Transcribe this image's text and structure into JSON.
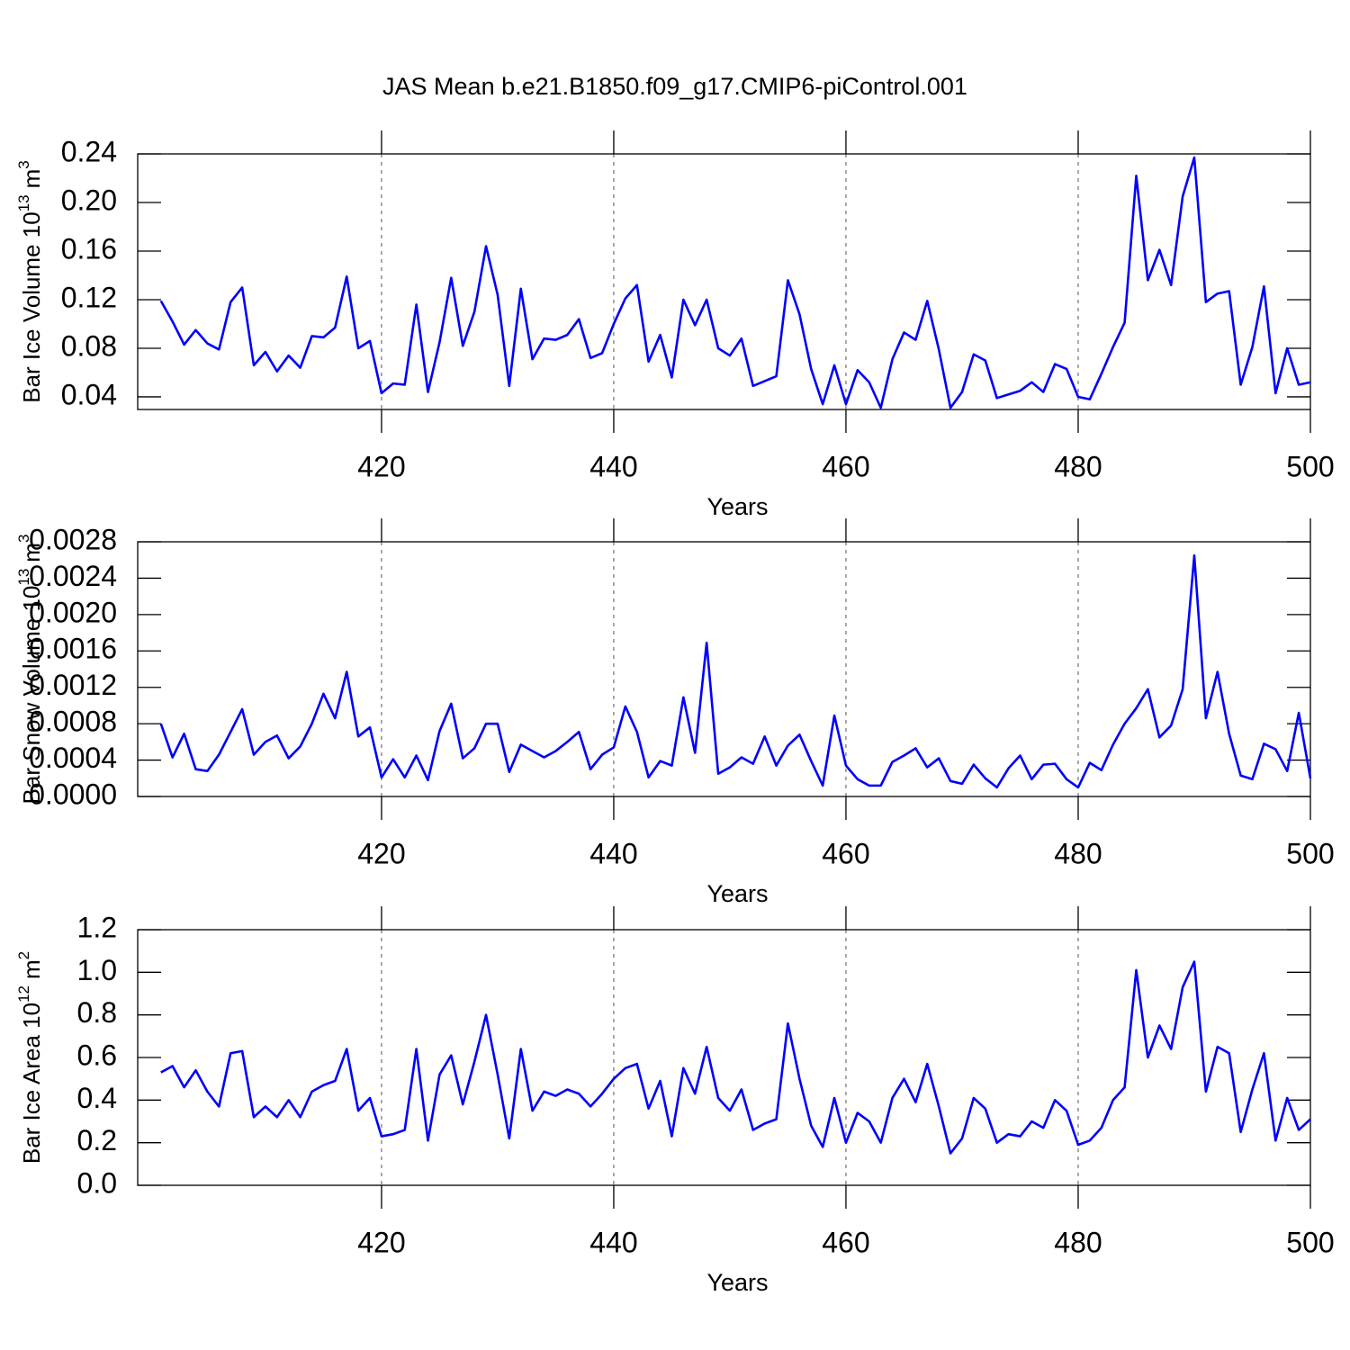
{
  "chart_data": [
    {
      "type": "line",
      "title": "JAS Mean b.e21.B1850.f09_g17.CMIP6-piControl.001",
      "ylabel": [
        "Bar Ice Volume 10",
        "13",
        "m",
        "3"
      ],
      "xlabel": "Years",
      "x": [
        401,
        402,
        403,
        404,
        405,
        406,
        407,
        408,
        409,
        410,
        411,
        412,
        413,
        414,
        415,
        416,
        417,
        418,
        419,
        420,
        421,
        422,
        423,
        424,
        425,
        426,
        427,
        428,
        429,
        430,
        431,
        432,
        433,
        434,
        435,
        436,
        437,
        438,
        439,
        440,
        441,
        442,
        443,
        444,
        445,
        446,
        447,
        448,
        449,
        450,
        451,
        452,
        453,
        454,
        455,
        456,
        457,
        458,
        459,
        460,
        461,
        462,
        463,
        464,
        465,
        466,
        467,
        468,
        469,
        470,
        471,
        472,
        473,
        474,
        475,
        476,
        477,
        478,
        479,
        480,
        481,
        482,
        483,
        484,
        485,
        486,
        487,
        488,
        489,
        490,
        491,
        492,
        493,
        494,
        495,
        496,
        497,
        498,
        499,
        500
      ],
      "series": [
        {
          "color": "#0000ff",
          "values": [
            0.119,
            0.102,
            0.083,
            0.095,
            0.084,
            0.079,
            0.118,
            0.13,
            0.066,
            0.077,
            0.061,
            0.074,
            0.064,
            0.09,
            0.089,
            0.097,
            0.139,
            0.08,
            0.086,
            0.043,
            0.051,
            0.05,
            0.116,
            0.044,
            0.085,
            0.138,
            0.082,
            0.11,
            0.164,
            0.124,
            0.049,
            0.129,
            0.071,
            0.088,
            0.087,
            0.091,
            0.104,
            0.072,
            0.076,
            0.1,
            0.121,
            0.132,
            0.069,
            0.091,
            0.056,
            0.12,
            0.099,
            0.12,
            0.08,
            0.074,
            0.088,
            0.049,
            0.053,
            0.057,
            0.136,
            0.108,
            0.063,
            0.034,
            0.066,
            0.034,
            0.062,
            0.052,
            0.031,
            0.071,
            0.093,
            0.087,
            0.119,
            0.079,
            0.031,
            0.044,
            0.075,
            0.07,
            0.039,
            0.042,
            0.045,
            0.052,
            0.044,
            0.067,
            0.063,
            0.04,
            0.038,
            0.059,
            0.081,
            0.101,
            0.222,
            0.136,
            0.161,
            0.132,
            0.205,
            0.237,
            0.118,
            0.125,
            0.127,
            0.05,
            0.081,
            0.131,
            0.043,
            0.08,
            0.05,
            0.052
          ]
        }
      ],
      "xlim": [
        399,
        500
      ],
      "xticks": [
        420,
        440,
        460,
        480,
        500
      ],
      "ylim": [
        0.0296,
        0.24
      ],
      "yticks": [
        0.04,
        0.08,
        0.12,
        0.16,
        {
          "value": 0.2,
          "label": "0.20"
        },
        0.24
      ],
      "xgrid": true
    },
    {
      "type": "line",
      "ylabel": [
        "Bar Snow Volume 10",
        "13",
        "m",
        "3"
      ],
      "xlabel": "Years",
      "x": [
        401,
        402,
        403,
        404,
        405,
        406,
        407,
        408,
        409,
        410,
        411,
        412,
        413,
        414,
        415,
        416,
        417,
        418,
        419,
        420,
        421,
        422,
        423,
        424,
        425,
        426,
        427,
        428,
        429,
        430,
        431,
        432,
        433,
        434,
        435,
        436,
        437,
        438,
        439,
        440,
        441,
        442,
        443,
        444,
        445,
        446,
        447,
        448,
        449,
        450,
        451,
        452,
        453,
        454,
        455,
        456,
        457,
        458,
        459,
        460,
        461,
        462,
        463,
        464,
        465,
        466,
        467,
        468,
        469,
        470,
        471,
        472,
        473,
        474,
        475,
        476,
        477,
        478,
        479,
        480,
        481,
        482,
        483,
        484,
        485,
        486,
        487,
        488,
        489,
        490,
        491,
        492,
        493,
        494,
        495,
        496,
        497,
        498,
        499,
        500
      ],
      "series": [
        {
          "color": "#0000ff",
          "values": [
            0.0008,
            0.00043,
            0.00069,
            0.0003,
            0.00028,
            0.00046,
            0.00071,
            0.00096,
            0.00046,
            0.0006,
            0.00067,
            0.00042,
            0.00055,
            0.0008,
            0.00113,
            0.00086,
            0.00137,
            0.00066,
            0.00076,
            0.00021,
            0.00041,
            0.00021,
            0.00045,
            0.00018,
            0.00072,
            0.00102,
            0.00042,
            0.00053,
            0.0008,
            0.0008,
            0.00027,
            0.00057,
            0.0005,
            0.00043,
            0.0005,
            0.0006,
            0.00071,
            0.0003,
            0.00046,
            0.00054,
            0.00099,
            0.00071,
            0.00021,
            0.00039,
            0.00034,
            0.00109,
            0.00048,
            0.00169,
            0.00025,
            0.00032,
            0.00043,
            0.00036,
            0.00066,
            0.00034,
            0.00056,
            0.00068,
            0.00039,
            0.00012,
            0.00089,
            0.00034,
            0.00019,
            0.00012,
            0.00012,
            0.00038,
            0.00045,
            0.00053,
            0.00032,
            0.00042,
            0.00017,
            0.00014,
            0.00035,
            0.0002,
            0.0001,
            0.00031,
            0.00045,
            0.00019,
            0.00035,
            0.00036,
            0.00019,
            0.0001,
            0.00037,
            0.00029,
            0.00057,
            0.0008,
            0.00097,
            0.00118,
            0.00065,
            0.00078,
            0.00118,
            0.00265,
            0.00086,
            0.00137,
            0.00069,
            0.00023,
            0.00019,
            0.00058,
            0.00052,
            0.00028,
            0.00092,
            0.0002
          ]
        }
      ],
      "xlim": [
        399,
        500
      ],
      "xticks": [
        420,
        440,
        460,
        480,
        500
      ],
      "ylim": [
        0,
        0.0028
      ],
      "yticks": [
        {
          "value": 0,
          "label": "0.0000"
        },
        {
          "value": 0.0004,
          "label": "0.0004"
        },
        {
          "value": 0.0008,
          "label": "0.0008"
        },
        {
          "value": 0.0012,
          "label": "0.0012"
        },
        {
          "value": 0.0016,
          "label": "0.0016"
        },
        {
          "value": 0.002,
          "label": "0.0020"
        },
        {
          "value": 0.0024,
          "label": "0.0024"
        },
        {
          "value": 0.0028,
          "label": "0.0028"
        }
      ],
      "xgrid": true
    },
    {
      "type": "line",
      "ylabel": [
        "Bar Ice Area 10",
        "12",
        "m",
        "2"
      ],
      "xlabel": "Years",
      "x": [
        401,
        402,
        403,
        404,
        405,
        406,
        407,
        408,
        409,
        410,
        411,
        412,
        413,
        414,
        415,
        416,
        417,
        418,
        419,
        420,
        421,
        422,
        423,
        424,
        425,
        426,
        427,
        428,
        429,
        430,
        431,
        432,
        433,
        434,
        435,
        436,
        437,
        438,
        439,
        440,
        441,
        442,
        443,
        444,
        445,
        446,
        447,
        448,
        449,
        450,
        451,
        452,
        453,
        454,
        455,
        456,
        457,
        458,
        459,
        460,
        461,
        462,
        463,
        464,
        465,
        466,
        467,
        468,
        469,
        470,
        471,
        472,
        473,
        474,
        475,
        476,
        477,
        478,
        479,
        480,
        481,
        482,
        483,
        484,
        485,
        486,
        487,
        488,
        489,
        490,
        491,
        492,
        493,
        494,
        495,
        496,
        497,
        498,
        499,
        500
      ],
      "series": [
        {
          "color": "#0000ff",
          "values": [
            0.53,
            0.56,
            0.46,
            0.54,
            0.44,
            0.37,
            0.62,
            0.63,
            0.32,
            0.37,
            0.32,
            0.4,
            0.32,
            0.44,
            0.47,
            0.49,
            0.64,
            0.35,
            0.41,
            0.23,
            0.24,
            0.26,
            0.64,
            0.21,
            0.52,
            0.61,
            0.38,
            0.58,
            0.8,
            0.52,
            0.22,
            0.64,
            0.35,
            0.44,
            0.42,
            0.45,
            0.43,
            0.37,
            0.43,
            0.5,
            0.55,
            0.57,
            0.36,
            0.49,
            0.23,
            0.55,
            0.43,
            0.65,
            0.41,
            0.35,
            0.45,
            0.26,
            0.29,
            0.31,
            0.76,
            0.5,
            0.28,
            0.18,
            0.41,
            0.2,
            0.34,
            0.3,
            0.2,
            0.41,
            0.5,
            0.39,
            0.57,
            0.37,
            0.15,
            0.22,
            0.41,
            0.36,
            0.2,
            0.24,
            0.23,
            0.3,
            0.27,
            0.4,
            0.35,
            0.19,
            0.21,
            0.27,
            0.4,
            0.46,
            1.01,
            0.6,
            0.75,
            0.64,
            0.93,
            1.05,
            0.44,
            0.65,
            0.62,
            0.25,
            0.45,
            0.62,
            0.21,
            0.41,
            0.26,
            0.31
          ]
        }
      ],
      "xlim": [
        399,
        500
      ],
      "xticks": [
        420,
        440,
        460,
        480,
        500
      ],
      "ylim": [
        0,
        1.2
      ],
      "yticks": [
        {
          "value": 0,
          "label": "0.0"
        },
        0.2,
        0.4,
        0.6,
        0.8,
        {
          "value": 1,
          "label": "1.0"
        },
        1.2
      ],
      "xgrid": true
    }
  ]
}
